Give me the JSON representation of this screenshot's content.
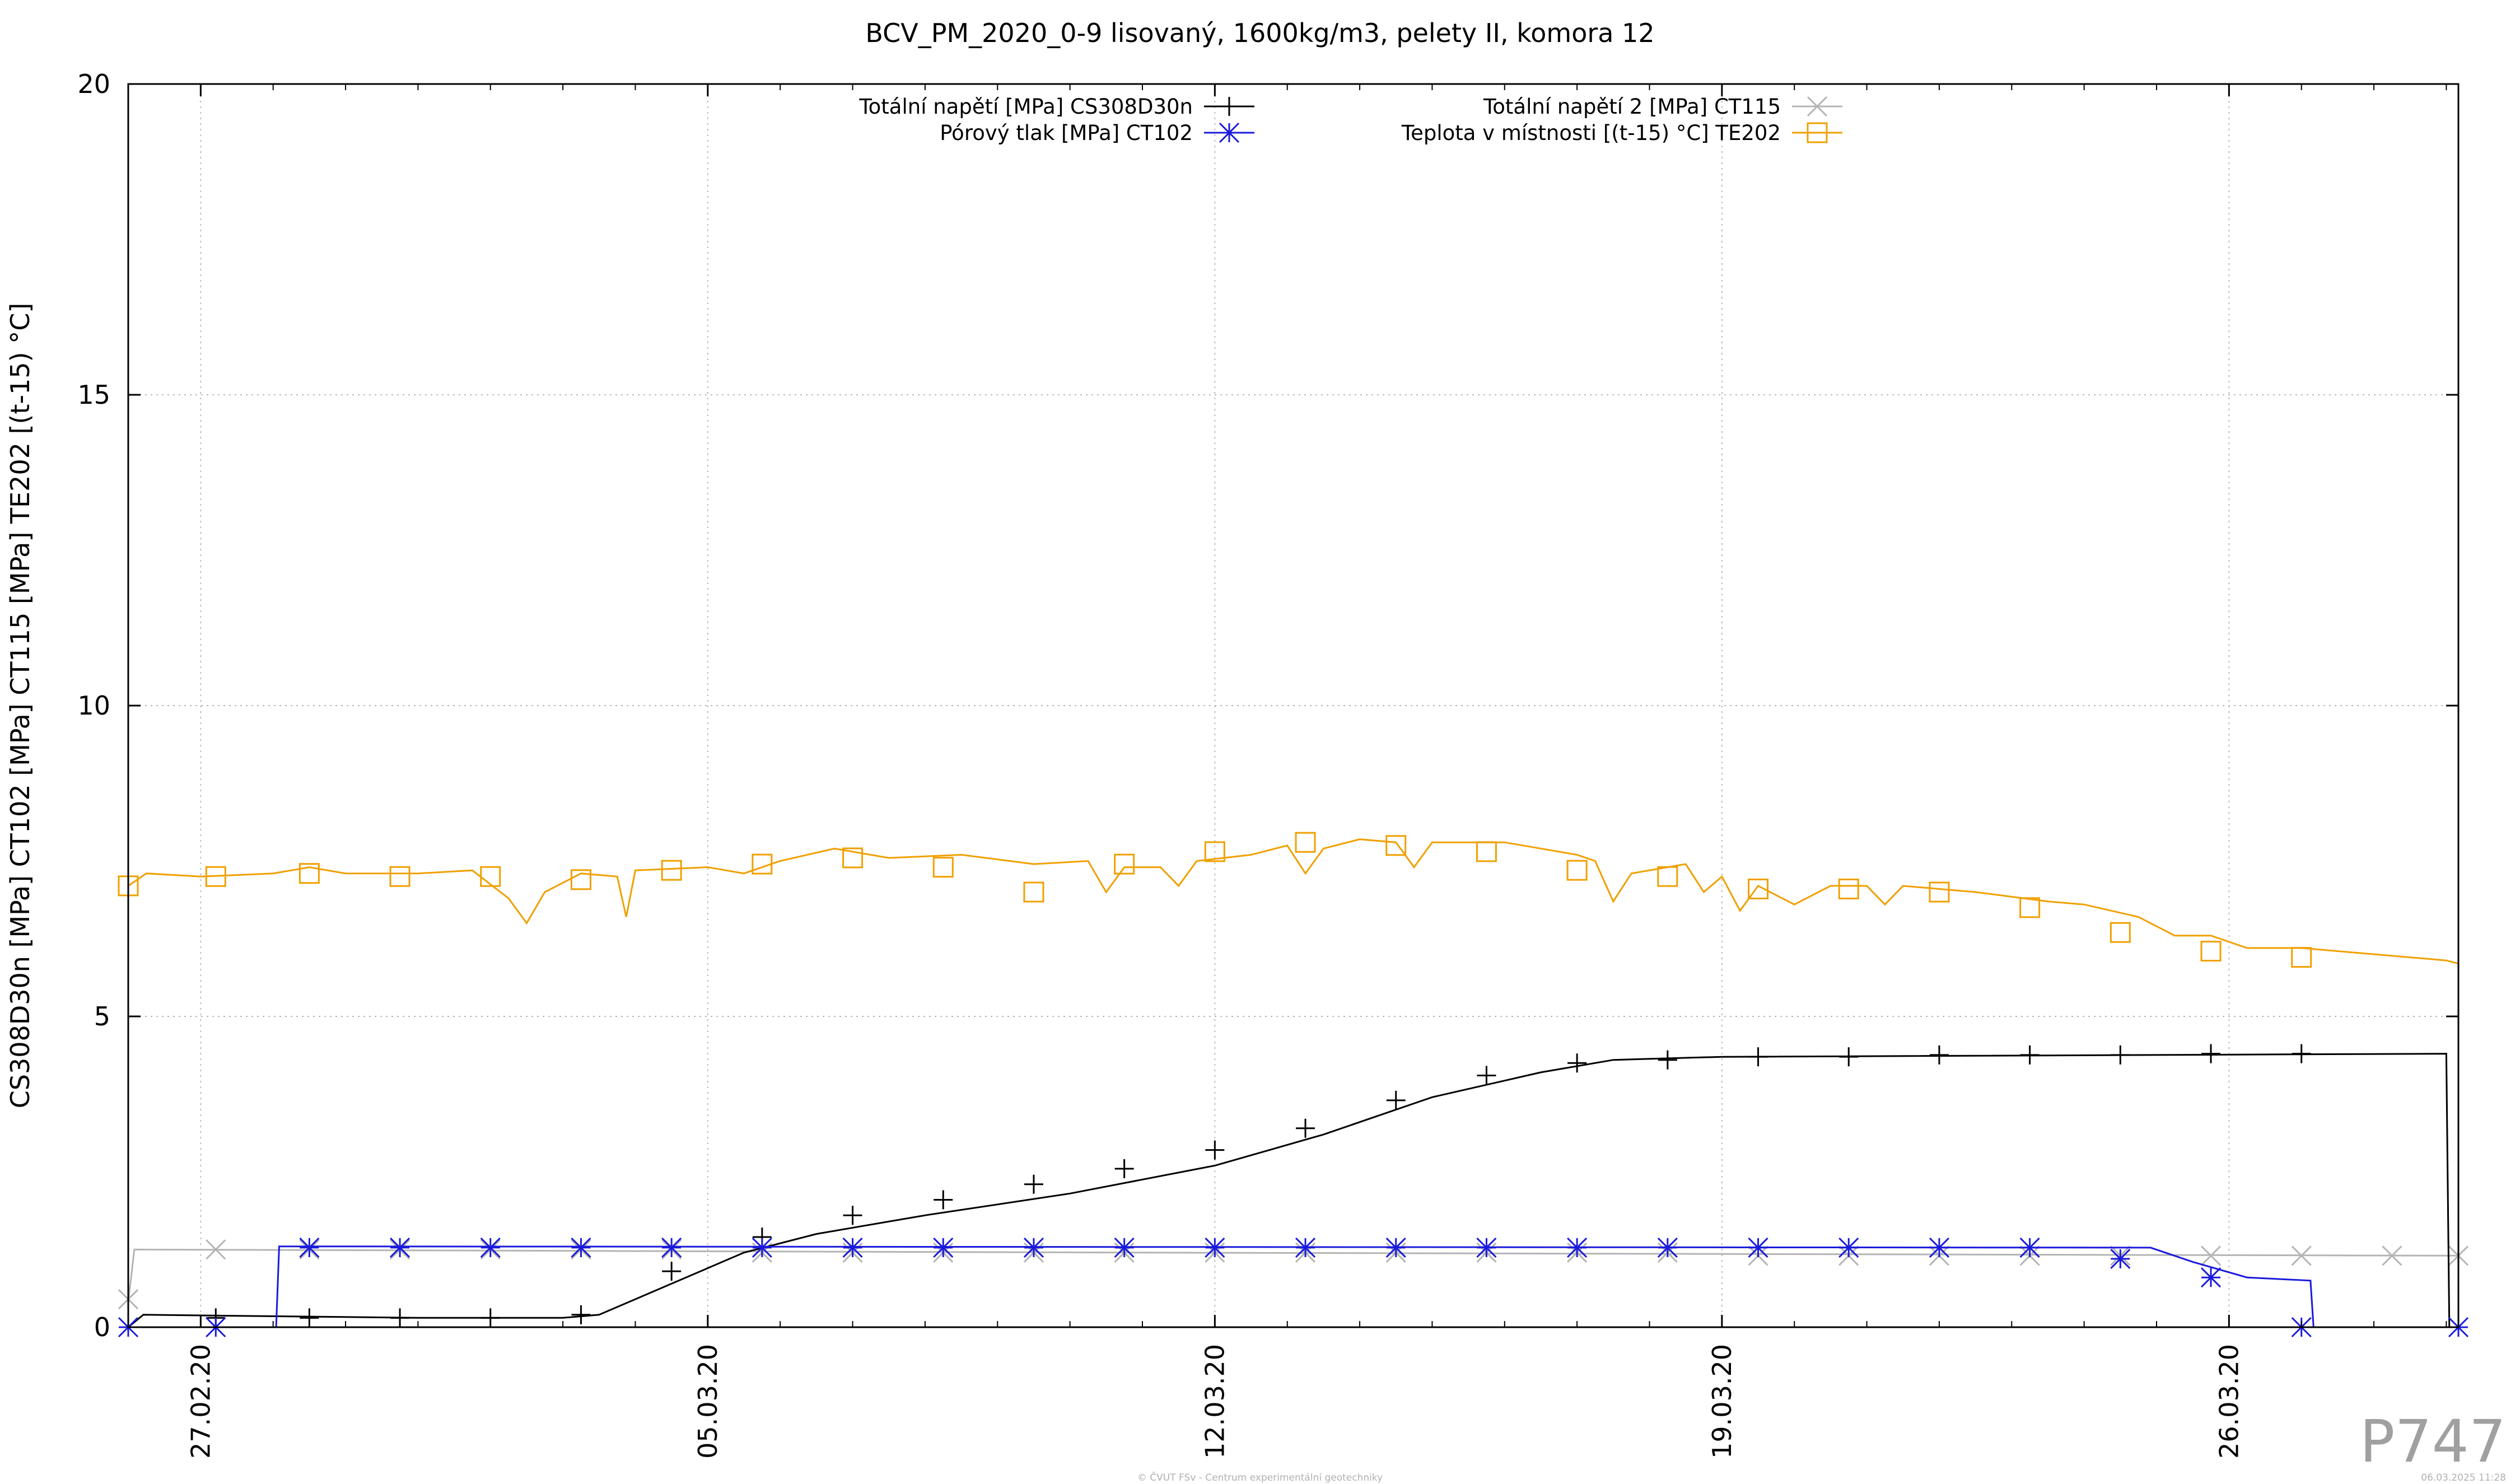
{
  "chart_data": {
    "type": "line",
    "title": "BCV_PM_2020_0-9 lisovaný, 1600kg/m3, pelety II, komora 12",
    "ylabel": "CS308D30n [MPa] CT102 [MPa] CT115 [MPa] TE202 [(t-15) °C]",
    "xlabel": "",
    "ylim": [
      0,
      20
    ],
    "xlim": [
      "2020-02-26 00:00",
      "2020-03-29 04:00"
    ],
    "y_ticks": [
      "0",
      "5",
      "10",
      "15",
      "20"
    ],
    "x_ticks": [
      "27.02.20",
      "05.03.20",
      "12.03.20",
      "19.03.20",
      "26.03.20"
    ],
    "grid": true,
    "legend_position": "top-center",
    "series": [
      {
        "name": "Totální napětí [MPa] CS308D30n",
        "color": "#000000",
        "marker": "plus",
        "points": [
          [
            "2020-02-26 00:00",
            0.0
          ],
          [
            "2020-02-26 05:00",
            0.2
          ],
          [
            "2020-03-01 00:00",
            0.15
          ],
          [
            "2020-03-03 00:00",
            0.15
          ],
          [
            "2020-03-03 12:00",
            0.2
          ],
          [
            "2020-03-04 12:00",
            0.7
          ],
          [
            "2020-03-05 12:00",
            1.2
          ],
          [
            "2020-03-06 12:00",
            1.5
          ],
          [
            "2020-03-08 00:00",
            1.8
          ],
          [
            "2020-03-10 00:00",
            2.15
          ],
          [
            "2020-03-12 00:00",
            2.6
          ],
          [
            "2020-03-13 12:00",
            3.1
          ],
          [
            "2020-03-15 00:00",
            3.7
          ],
          [
            "2020-03-16 12:00",
            4.1
          ],
          [
            "2020-03-17 12:00",
            4.3
          ],
          [
            "2020-03-19 00:00",
            4.35
          ],
          [
            "2020-03-29 00:00",
            4.4
          ],
          [
            "2020-03-29 01:00",
            0.0
          ]
        ],
        "marker_points": [
          [
            "2020-02-27 05:00",
            0.15
          ],
          [
            "2020-02-28 12:00",
            0.15
          ],
          [
            "2020-02-29 18:00",
            0.15
          ],
          [
            "2020-03-02 00:00",
            0.15
          ],
          [
            "2020-03-03 06:00",
            0.2
          ],
          [
            "2020-03-04 12:00",
            0.9
          ],
          [
            "2020-03-05 18:00",
            1.45
          ],
          [
            "2020-03-07 00:00",
            1.8
          ],
          [
            "2020-03-08 06:00",
            2.05
          ],
          [
            "2020-03-09 12:00",
            2.3
          ],
          [
            "2020-03-10 18:00",
            2.55
          ],
          [
            "2020-03-12 00:00",
            2.85
          ],
          [
            "2020-03-13 06:00",
            3.2
          ],
          [
            "2020-03-14 12:00",
            3.65
          ],
          [
            "2020-03-15 18:00",
            4.05
          ],
          [
            "2020-03-17 00:00",
            4.25
          ],
          [
            "2020-03-18 06:00",
            4.3
          ],
          [
            "2020-03-19 12:00",
            4.35
          ],
          [
            "2020-03-20 18:00",
            4.35
          ],
          [
            "2020-03-22 00:00",
            4.38
          ],
          [
            "2020-03-23 06:00",
            4.38
          ],
          [
            "2020-03-24 12:00",
            4.38
          ],
          [
            "2020-03-25 18:00",
            4.4
          ],
          [
            "2020-03-27 00:00",
            4.4
          ]
        ]
      },
      {
        "name": "Pórový tlak [MPa] CT102",
        "color": "#1a1adc",
        "marker": "star",
        "points": [
          [
            "2020-02-26 00:00",
            0.0
          ],
          [
            "2020-02-28 01:00",
            0.0
          ],
          [
            "2020-02-28 02:00",
            1.3
          ],
          [
            "2020-03-24 22:00",
            1.28
          ],
          [
            "2020-03-25 12:00",
            1.05
          ],
          [
            "2020-03-26 06:00",
            0.8
          ],
          [
            "2020-03-27 03:00",
            0.75
          ],
          [
            "2020-03-27 04:00",
            0.0
          ],
          [
            "2020-03-29 04:00",
            0.0
          ]
        ],
        "marker_points": [
          [
            "2020-02-26 00:00",
            0.0
          ],
          [
            "2020-02-27 05:00",
            0.0
          ],
          [
            "2020-02-28 12:00",
            1.28
          ],
          [
            "2020-02-29 18:00",
            1.28
          ],
          [
            "2020-03-02 00:00",
            1.28
          ],
          [
            "2020-03-03 06:00",
            1.28
          ],
          [
            "2020-03-04 12:00",
            1.28
          ],
          [
            "2020-03-05 18:00",
            1.28
          ],
          [
            "2020-03-07 00:00",
            1.28
          ],
          [
            "2020-03-08 06:00",
            1.28
          ],
          [
            "2020-03-09 12:00",
            1.28
          ],
          [
            "2020-03-10 18:00",
            1.28
          ],
          [
            "2020-03-12 00:00",
            1.28
          ],
          [
            "2020-03-13 06:00",
            1.28
          ],
          [
            "2020-03-14 12:00",
            1.28
          ],
          [
            "2020-03-15 18:00",
            1.28
          ],
          [
            "2020-03-17 00:00",
            1.28
          ],
          [
            "2020-03-18 06:00",
            1.28
          ],
          [
            "2020-03-19 12:00",
            1.28
          ],
          [
            "2020-03-20 18:00",
            1.28
          ],
          [
            "2020-03-22 00:00",
            1.28
          ],
          [
            "2020-03-23 06:00",
            1.28
          ],
          [
            "2020-03-24 12:00",
            1.1
          ],
          [
            "2020-03-25 18:00",
            0.8
          ],
          [
            "2020-03-27 00:00",
            0.0
          ],
          [
            "2020-03-29 04:00",
            0.0
          ]
        ]
      },
      {
        "name": "Totální napětí 2 [MPa] CT115",
        "color": "#b4b4b4",
        "marker": "cross",
        "points": [
          [
            "2020-02-26 00:00",
            0.4
          ],
          [
            "2020-02-26 02:00",
            1.25
          ],
          [
            "2020-03-11 00:00",
            1.2
          ],
          [
            "2020-03-29 04:00",
            1.15
          ]
        ],
        "marker_points": [
          [
            "2020-02-26 00:00",
            0.45
          ],
          [
            "2020-02-27 05:00",
            1.25
          ],
          [
            "2020-02-28 12:00",
            1.25
          ],
          [
            "2020-02-29 18:00",
            1.25
          ],
          [
            "2020-03-02 00:00",
            1.25
          ],
          [
            "2020-03-03 06:00",
            1.25
          ],
          [
            "2020-03-04 12:00",
            1.25
          ],
          [
            "2020-03-05 18:00",
            1.2
          ],
          [
            "2020-03-07 00:00",
            1.2
          ],
          [
            "2020-03-08 06:00",
            1.2
          ],
          [
            "2020-03-09 12:00",
            1.2
          ],
          [
            "2020-03-10 18:00",
            1.2
          ],
          [
            "2020-03-12 00:00",
            1.2
          ],
          [
            "2020-03-13 06:00",
            1.2
          ],
          [
            "2020-03-14 12:00",
            1.2
          ],
          [
            "2020-03-15 18:00",
            1.2
          ],
          [
            "2020-03-17 00:00",
            1.2
          ],
          [
            "2020-03-18 06:00",
            1.2
          ],
          [
            "2020-03-19 12:00",
            1.15
          ],
          [
            "2020-03-20 18:00",
            1.15
          ],
          [
            "2020-03-22 00:00",
            1.15
          ],
          [
            "2020-03-23 06:00",
            1.15
          ],
          [
            "2020-03-24 12:00",
            1.15
          ],
          [
            "2020-03-25 18:00",
            1.15
          ],
          [
            "2020-03-27 00:00",
            1.15
          ],
          [
            "2020-03-28 06:00",
            1.15
          ],
          [
            "2020-03-29 04:00",
            1.15
          ]
        ]
      },
      {
        "name": "Teplota v místnosti [(t-15) °C] TE202",
        "color": "#f0a000",
        "marker": "square",
        "points": [
          [
            "2020-02-26 00:00",
            7.1
          ],
          [
            "2020-02-26 06:00",
            7.3
          ],
          [
            "2020-02-27 00:00",
            7.25
          ],
          [
            "2020-02-28 00:00",
            7.3
          ],
          [
            "2020-02-28 12:00",
            7.4
          ],
          [
            "2020-02-29 00:00",
            7.3
          ],
          [
            "2020-03-01 00:00",
            7.3
          ],
          [
            "2020-03-01 18:00",
            7.35
          ],
          [
            "2020-03-02 06:00",
            6.9
          ],
          [
            "2020-03-02 12:00",
            6.5
          ],
          [
            "2020-03-02 18:00",
            7.0
          ],
          [
            "2020-03-03 06:00",
            7.3
          ],
          [
            "2020-03-03 18:00",
            7.25
          ],
          [
            "2020-03-03 21:00",
            6.6
          ],
          [
            "2020-03-04 00:00",
            7.35
          ],
          [
            "2020-03-05 00:00",
            7.4
          ],
          [
            "2020-03-05 12:00",
            7.3
          ],
          [
            "2020-03-06 00:00",
            7.5
          ],
          [
            "2020-03-06 18:00",
            7.7
          ],
          [
            "2020-03-07 12:00",
            7.55
          ],
          [
            "2020-03-08 12:00",
            7.6
          ],
          [
            "2020-03-09 12:00",
            7.45
          ],
          [
            "2020-03-10 06:00",
            7.5
          ],
          [
            "2020-03-10 12:00",
            7.0
          ],
          [
            "2020-03-10 18:00",
            7.4
          ],
          [
            "2020-03-11 06:00",
            7.4
          ],
          [
            "2020-03-11 12:00",
            7.1
          ],
          [
            "2020-03-11 18:00",
            7.5
          ],
          [
            "2020-03-12 12:00",
            7.6
          ],
          [
            "2020-03-13 00:00",
            7.75
          ],
          [
            "2020-03-13 06:00",
            7.3
          ],
          [
            "2020-03-13 12:00",
            7.7
          ],
          [
            "2020-03-14 00:00",
            7.85
          ],
          [
            "2020-03-14 12:00",
            7.8
          ],
          [
            "2020-03-14 18:00",
            7.4
          ],
          [
            "2020-03-15 00:00",
            7.8
          ],
          [
            "2020-03-16 00:00",
            7.8
          ],
          [
            "2020-03-17 00:00",
            7.6
          ],
          [
            "2020-03-17 06:00",
            7.5
          ],
          [
            "2020-03-17 12:00",
            6.85
          ],
          [
            "2020-03-17 18:00",
            7.3
          ],
          [
            "2020-03-18 12:00",
            7.45
          ],
          [
            "2020-03-18 18:00",
            7.0
          ],
          [
            "2020-03-19 00:00",
            7.25
          ],
          [
            "2020-03-19 06:00",
            6.7
          ],
          [
            "2020-03-19 12:00",
            7.1
          ],
          [
            "2020-03-20 00:00",
            6.8
          ],
          [
            "2020-03-20 12:00",
            7.1
          ],
          [
            "2020-03-21 00:00",
            7.1
          ],
          [
            "2020-03-21 06:00",
            6.8
          ],
          [
            "2020-03-21 12:00",
            7.1
          ],
          [
            "2020-03-22 12:00",
            7.0
          ],
          [
            "2020-03-23 12:00",
            6.85
          ],
          [
            "2020-03-24 00:00",
            6.8
          ],
          [
            "2020-03-24 18:00",
            6.6
          ],
          [
            "2020-03-25 06:00",
            6.3
          ],
          [
            "2020-03-25 18:00",
            6.3
          ],
          [
            "2020-03-26 06:00",
            6.1
          ],
          [
            "2020-03-27 00:00",
            6.1
          ],
          [
            "2020-03-28 00:00",
            6.0
          ],
          [
            "2020-03-29 00:00",
            5.9
          ],
          [
            "2020-03-29 04:00",
            5.85
          ]
        ],
        "marker_points": [
          [
            "2020-02-26 00:00",
            7.1
          ],
          [
            "2020-02-27 05:00",
            7.25
          ],
          [
            "2020-02-28 12:00",
            7.3
          ],
          [
            "2020-02-29 18:00",
            7.25
          ],
          [
            "2020-03-02 00:00",
            7.25
          ],
          [
            "2020-03-03 06:00",
            7.2
          ],
          [
            "2020-03-04 12:00",
            7.35
          ],
          [
            "2020-03-05 18:00",
            7.45
          ],
          [
            "2020-03-07 00:00",
            7.55
          ],
          [
            "2020-03-08 06:00",
            7.4
          ],
          [
            "2020-03-09 12:00",
            7.0
          ],
          [
            "2020-03-10 18:00",
            7.45
          ],
          [
            "2020-03-12 00:00",
            7.65
          ],
          [
            "2020-03-13 06:00",
            7.8
          ],
          [
            "2020-03-14 12:00",
            7.75
          ],
          [
            "2020-03-15 18:00",
            7.65
          ],
          [
            "2020-03-17 00:00",
            7.35
          ],
          [
            "2020-03-18 06:00",
            7.25
          ],
          [
            "2020-03-19 12:00",
            7.05
          ],
          [
            "2020-03-20 18:00",
            7.05
          ],
          [
            "2020-03-22 00:00",
            7.0
          ],
          [
            "2020-03-23 06:00",
            6.75
          ],
          [
            "2020-03-24 12:00",
            6.35
          ],
          [
            "2020-03-25 18:00",
            6.05
          ],
          [
            "2020-03-27 00:00",
            5.95
          ]
        ]
      }
    ]
  },
  "page_code": "P747",
  "footer": {
    "credit": "© ČVUT FSv - Centrum experimentální geotechniky",
    "timestamp": "06.03.2025 11:28"
  }
}
